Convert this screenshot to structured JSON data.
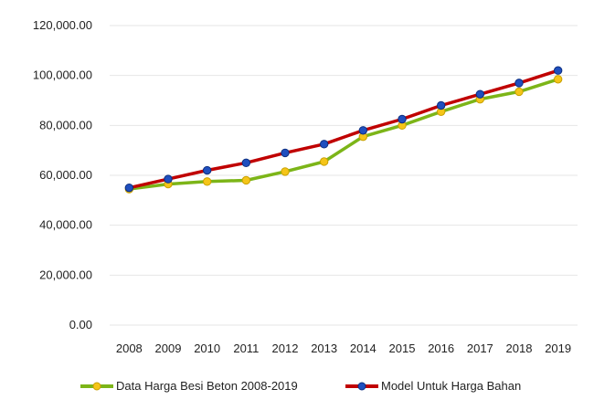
{
  "chart_data": {
    "type": "line",
    "categories": [
      "2008",
      "2009",
      "2010",
      "2011",
      "2012",
      "2013",
      "2014",
      "2015",
      "2016",
      "2017",
      "2018",
      "2019"
    ],
    "ylim": [
      0,
      120000
    ],
    "yticks": [
      0,
      20000,
      40000,
      60000,
      80000,
      100000,
      120000
    ],
    "ytick_labels": [
      "0.00",
      "20,000.00",
      "40,000.00",
      "60,000.00",
      "80,000.00",
      "100,000.00",
      "120,000.00"
    ],
    "grid": true,
    "legend_position": "bottom",
    "series": [
      {
        "name": "Data Harga Besi Beton 2008-2019",
        "line_color": "#7cb518",
        "marker_color": "#f5c518",
        "values": [
          54500,
          56500,
          57500,
          58000,
          61500,
          65500,
          75500,
          80000,
          85500,
          90500,
          93500,
          98500
        ]
      },
      {
        "name": "Model Untuk Harga Bahan",
        "line_color": "#c00000",
        "marker_color": "#1f4fbf",
        "values": [
          55000,
          58500,
          62000,
          65000,
          69000,
          72500,
          78000,
          82500,
          88000,
          92500,
          97000,
          102000
        ]
      }
    ]
  }
}
